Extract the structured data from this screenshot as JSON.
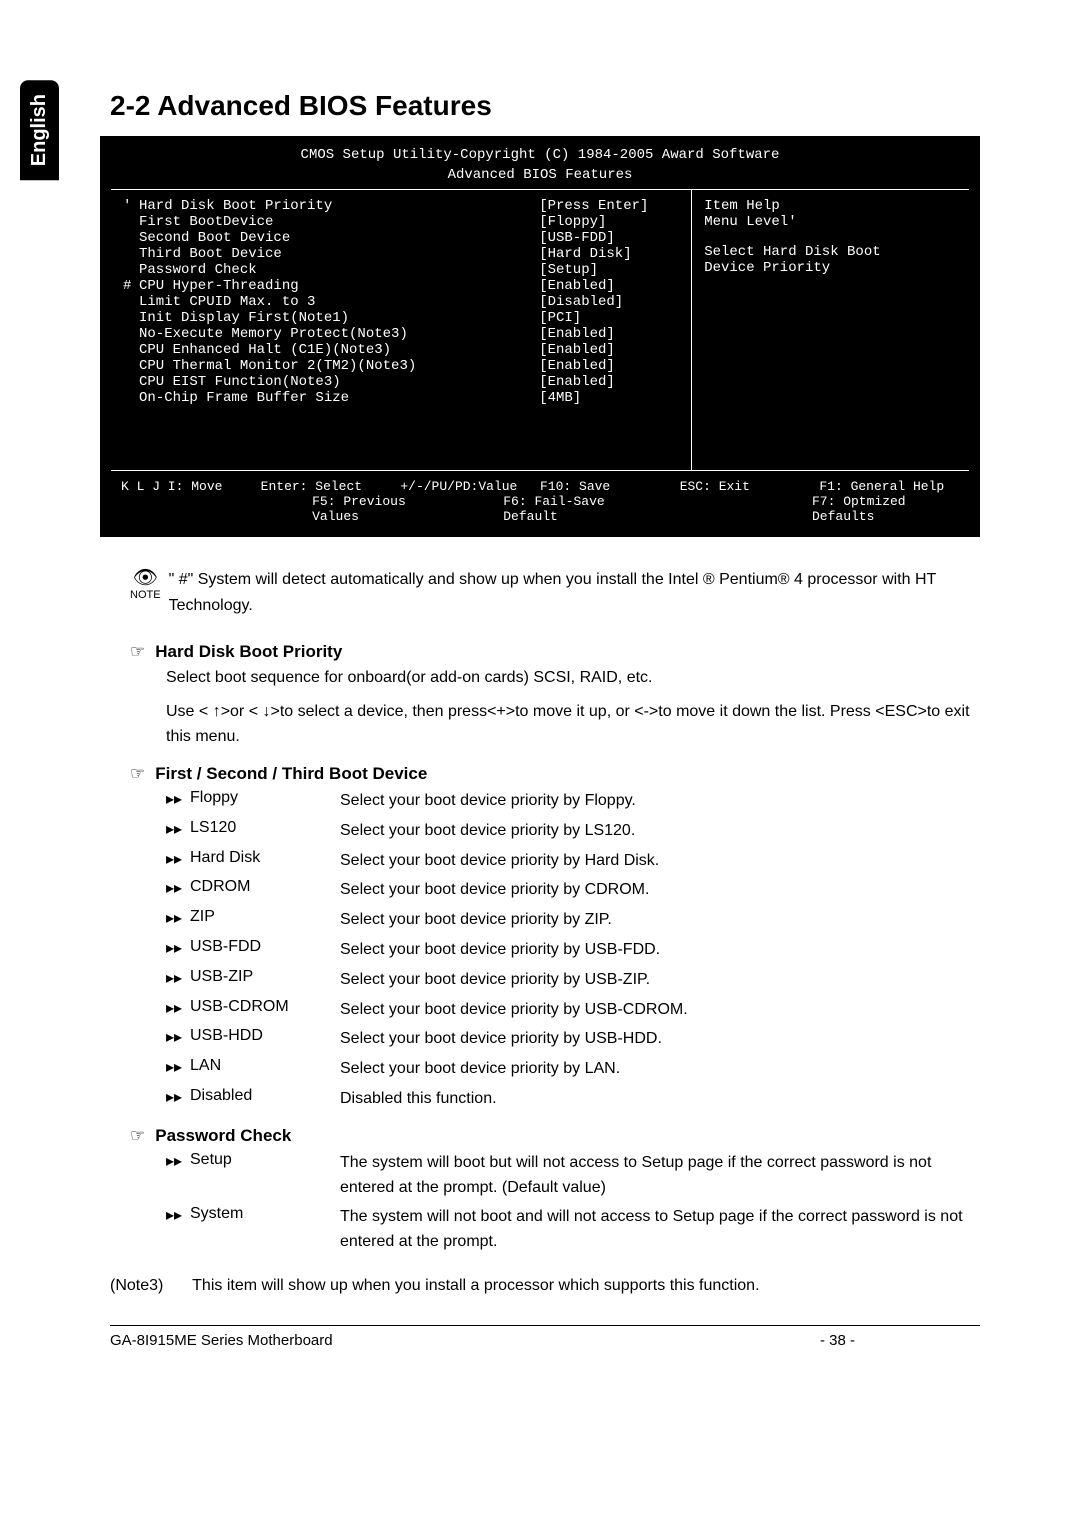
{
  "side_tab": "English",
  "section_title": "2-2    Advanced BIOS Features",
  "bios": {
    "header_line1": "CMOS Setup Utility-Copyright (C) 1984-2005 Award Software",
    "header_line2": "Advanced BIOS Features",
    "rows": [
      {
        "marker": "'",
        "label": "Hard Disk Boot Priority",
        "value": "[Press Enter]"
      },
      {
        "marker": "",
        "label": "First BootDevice",
        "value": "[Floppy]"
      },
      {
        "marker": "",
        "label": "Second Boot Device",
        "value": "[USB-FDD]"
      },
      {
        "marker": "",
        "label": "Third Boot Device",
        "value": "[Hard Disk]"
      },
      {
        "marker": "",
        "label": "Password Check",
        "value": "[Setup]"
      },
      {
        "marker": "#",
        "label": "CPU Hyper-Threading",
        "value": "[Enabled]"
      },
      {
        "marker": "",
        "label": "Limit CPUID Max. to 3",
        "value": "[Disabled]"
      },
      {
        "marker": "",
        "label": "Init Display First(Note1)",
        "value": "[PCI]"
      },
      {
        "marker": "",
        "label": "No-Execute Memory Protect(Note3)",
        "value": "[Enabled]"
      },
      {
        "marker": "",
        "label": "CPU Enhanced Halt (C1E)(Note3)",
        "value": "[Enabled]"
      },
      {
        "marker": "",
        "label": "CPU Thermal Monitor 2(TM2)(Note3)",
        "value": "[Enabled]"
      },
      {
        "marker": "",
        "label": "CPU EIST Function(Note3)",
        "value": "[Enabled]"
      },
      {
        "marker": "",
        "label": "On-Chip Frame Buffer Size",
        "value": "[4MB]"
      }
    ],
    "help_title": "Item Help",
    "help_menu": "Menu Level'",
    "help_desc1": "Select Hard Disk Boot",
    "help_desc2": "Device Priority",
    "footer_row1": {
      "c1": "K L J I: Move",
      "c2": "Enter: Select",
      "c3": "+/-/PU/PD:Value",
      "c4": "F10: Save",
      "c5": "ESC: Exit",
      "c6": "F1: General Help"
    },
    "footer_row2": {
      "c1": "F5: Previous Values",
      "c2": "F6: Fail-Save Default",
      "c3": "F7: Optmized Defaults"
    }
  },
  "note_label": "NOTE",
  "note_text": "\" #\" System will detect automatically and show up when you install the Intel ® Pentium® 4 processor with HT Technology.",
  "sections": {
    "hard_disk": {
      "title": "Hard Disk Boot Priority",
      "desc1": "Select boot sequence for onboard(or add-on cards) SCSI, RAID, etc.",
      "desc2": "Use < ↑>or <  ↓>to select a device, then press<+>to move it up, or <->to move it down the list. Press <ESC>to exit this menu."
    },
    "boot_device": {
      "title": "First / Second / Third Boot Device",
      "items": [
        {
          "name": "Floppy",
          "desc": "Select your boot device priority by Floppy."
        },
        {
          "name": "LS120",
          "desc": "Select your boot device priority by LS120."
        },
        {
          "name": "Hard Disk",
          "desc": "Select your boot device priority by Hard Disk."
        },
        {
          "name": "CDROM",
          "desc": "Select your boot device priority by CDROM."
        },
        {
          "name": "ZIP",
          "desc": "Select your boot device priority by ZIP."
        },
        {
          "name": "USB-FDD",
          "desc": "Select your boot device priority by USB-FDD."
        },
        {
          "name": "USB-ZIP",
          "desc": "Select your boot device priority by USB-ZIP."
        },
        {
          "name": "USB-CDROM",
          "desc": "Select your boot device priority by USB-CDROM."
        },
        {
          "name": "USB-HDD",
          "desc": "Select your boot device priority by USB-HDD."
        },
        {
          "name": "LAN",
          "desc": "Select your boot device priority by LAN."
        },
        {
          "name": "Disabled",
          "desc": "Disabled this function."
        }
      ]
    },
    "password_check": {
      "title": "Password Check",
      "items": [
        {
          "name": "Setup",
          "desc": "The system will boot but will not access to Setup page if the correct password is not entered at the prompt. (Default value)"
        },
        {
          "name": "System",
          "desc": "The system will not boot and will not access to Setup page if the correct password is not entered at the prompt."
        }
      ]
    }
  },
  "footnote_tag": "(Note3)",
  "footnote_text": "This item will show up when you install a processor which supports this function.",
  "footer_mb": "GA-8I915ME Series Motherboard",
  "footer_pg": "- 38 -"
}
